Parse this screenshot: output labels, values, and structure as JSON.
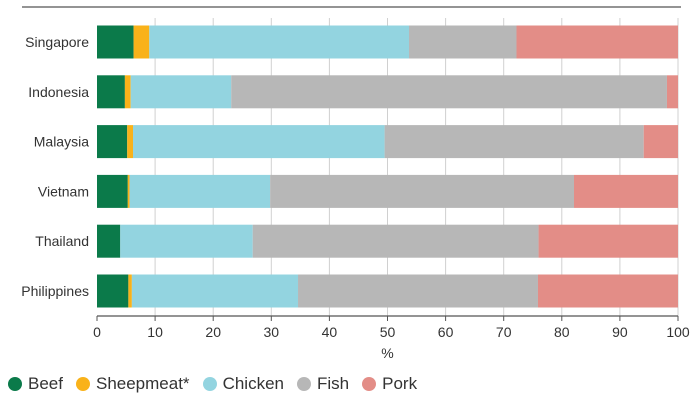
{
  "chart_data": {
    "type": "bar",
    "orientation": "horizontal",
    "stacked": true,
    "title": "",
    "xlabel": "%",
    "ylabel": "",
    "xlim": [
      0,
      100
    ],
    "xticks": [
      0,
      10,
      20,
      30,
      40,
      50,
      60,
      70,
      80,
      90,
      100
    ],
    "grid": "vertical",
    "legend_position": "bottom",
    "categories": [
      "Singapore",
      "Indonesia",
      "Malaysia",
      "Vietnam",
      "Thailand",
      "Philippines"
    ],
    "series": [
      {
        "name": "Beef",
        "color": "#0b7a4a",
        "values": [
          6.3,
          4.8,
          5.2,
          5.3,
          4.0,
          5.4
        ]
      },
      {
        "name": "Sheepmeat*",
        "color": "#f9b21a",
        "values": [
          2.7,
          1.0,
          1.0,
          0.3,
          0.0,
          0.6
        ]
      },
      {
        "name": "Chicken",
        "color": "#93d4e0",
        "values": [
          44.7,
          17.3,
          43.3,
          24.2,
          22.8,
          28.6
        ]
      },
      {
        "name": "Fish",
        "color": "#b7b7b7",
        "values": [
          18.5,
          75.0,
          44.6,
          52.3,
          49.2,
          41.3
        ]
      },
      {
        "name": "Pork",
        "color": "#e38d87",
        "values": [
          27.8,
          1.9,
          5.9,
          17.9,
          24.0,
          24.1
        ]
      }
    ]
  }
}
